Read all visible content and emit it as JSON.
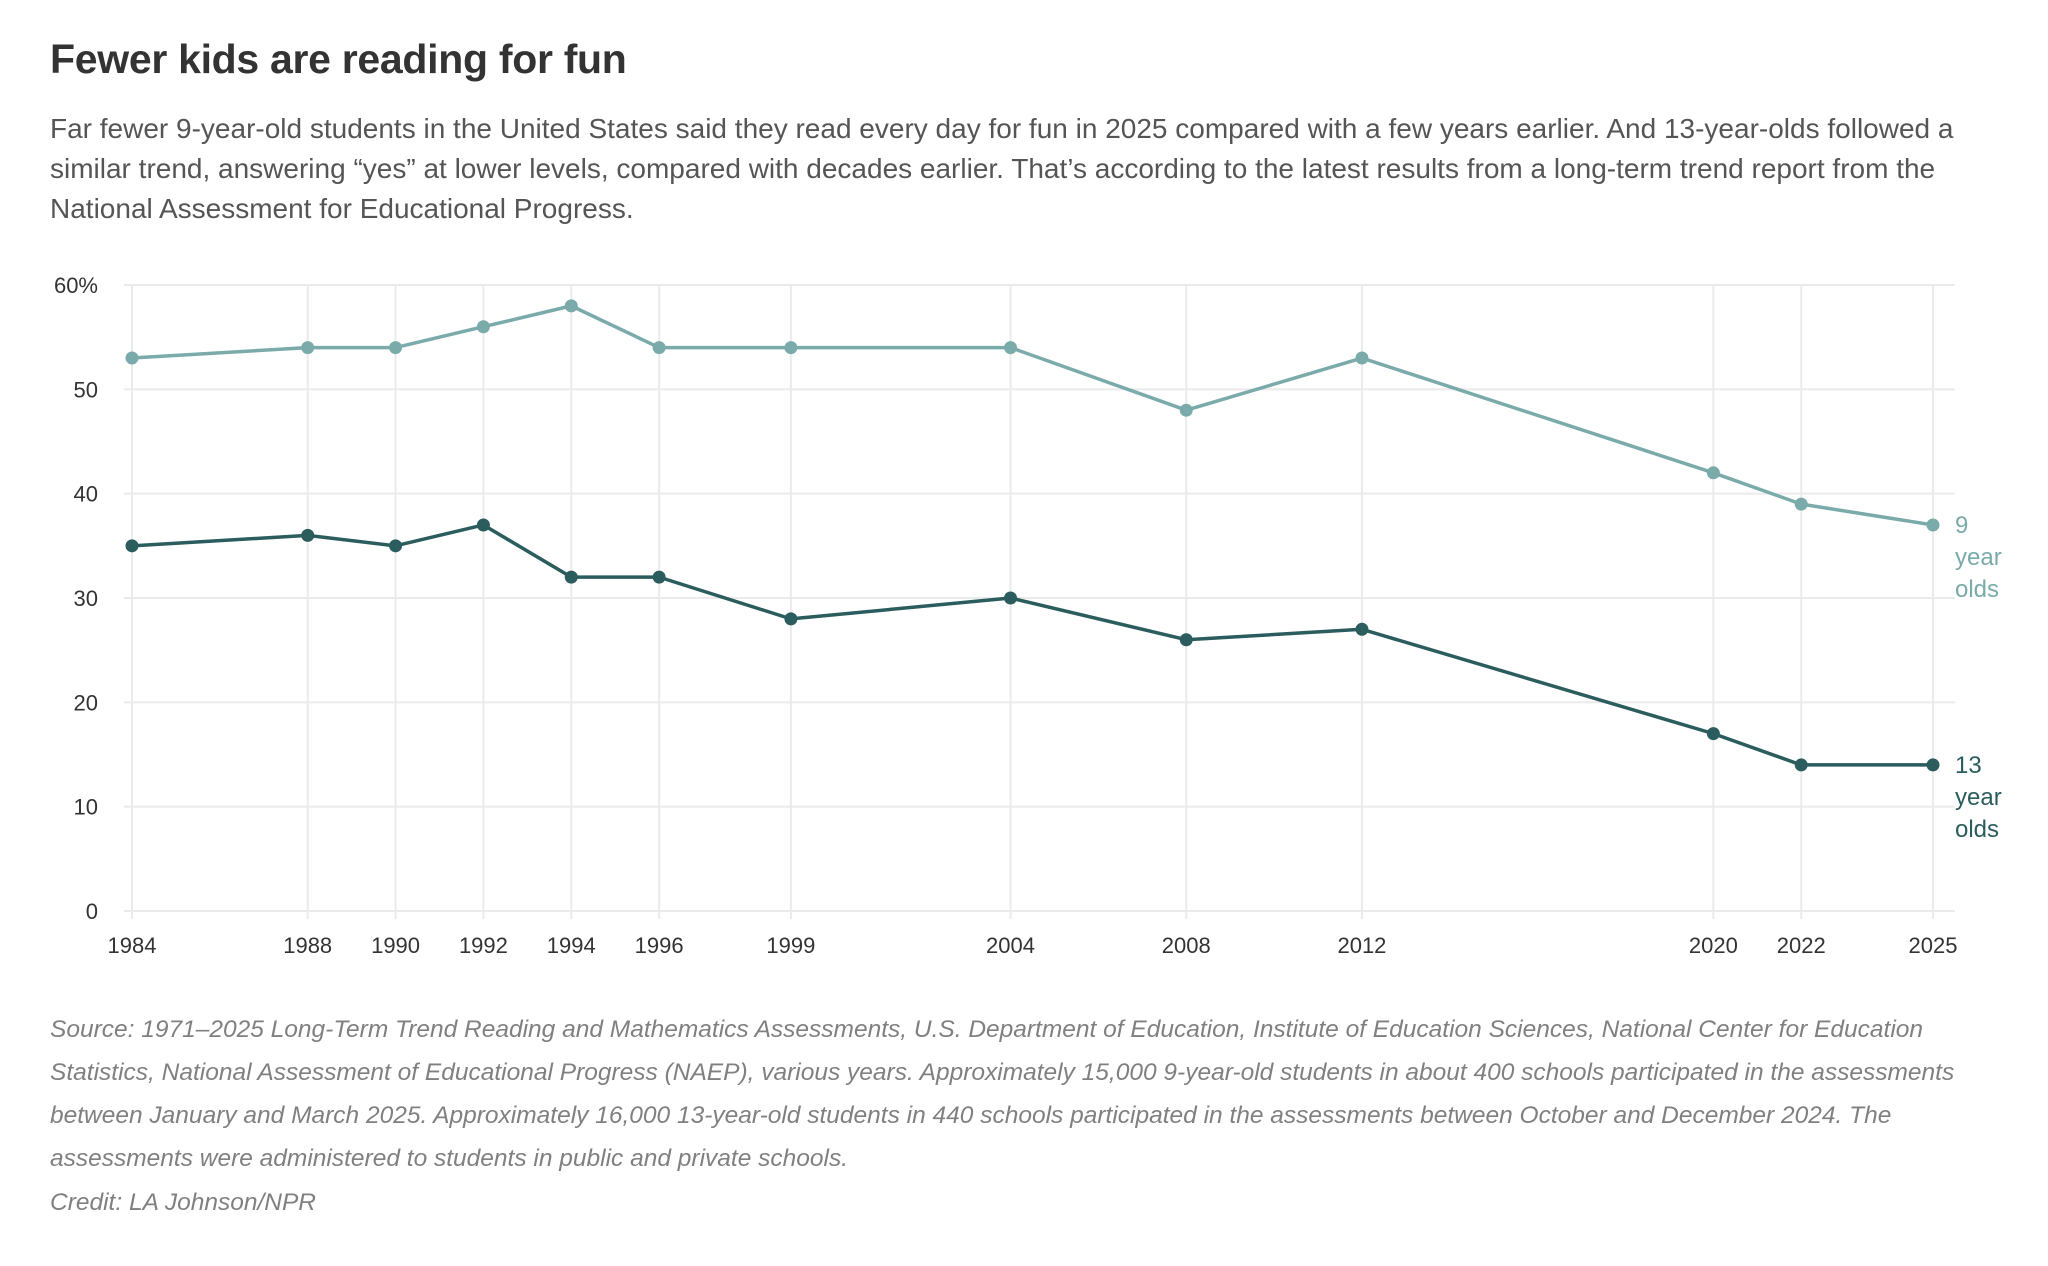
{
  "title": "Fewer kids are reading for fun",
  "subtitle": "Far fewer 9-year-old students in the United States said they read every day for fun in 2025 compared with a few years earlier. And 13-year-olds followed a similar trend, answering “yes” at lower levels, compared with decades earlier. That’s according to the latest results from a long-term trend report from the National Assessment for Educational Progress.",
  "source": "Source: 1971–2025 Long-Term Trend Reading and Mathematics Assessments, U.S. Department of Education, Institute of Education Sciences, National Center for Education Statistics, National Assessment of Educational Progress (NAEP), various years. Approximately 15,000 9-year-old students in about 400 schools participated in the assessments between January and March 2025. Approximately 16,000 13-year-old students in 440 schools participated in the assessments between October and December 2024. The assessments were administered to students in public and private schools.",
  "credit": "Credit: LA Johnson/NPR",
  "chart_data": {
    "type": "line",
    "x": [
      1984,
      1988,
      1990,
      1992,
      1994,
      1996,
      1999,
      2004,
      2008,
      2012,
      2020,
      2022,
      2025
    ],
    "x_tick_labels": [
      "1984",
      "1988",
      "1990",
      "1992",
      "1994",
      "1996",
      "1999",
      "2004",
      "2008",
      "2012",
      "2020",
      "2022",
      "2025"
    ],
    "y_ticks": [
      0,
      10,
      20,
      30,
      40,
      50,
      60
    ],
    "y_tick_labels": [
      "0",
      "10",
      "20",
      "30",
      "40",
      "50",
      "60%"
    ],
    "ylim": [
      0,
      60
    ],
    "xlim": [
      1984,
      2025
    ],
    "grid": true,
    "series": [
      {
        "name": "9 year olds",
        "label_lines": [
          "9",
          "year",
          "olds"
        ],
        "color": "#7aabaa",
        "values": [
          53,
          54,
          54,
          56,
          58,
          54,
          54,
          54,
          48,
          53,
          42,
          39,
          37
        ]
      },
      {
        "name": "13 year olds",
        "label_lines": [
          "13",
          "year",
          "olds"
        ],
        "color": "#2b5d5e",
        "values": [
          35,
          36,
          35,
          37,
          32,
          32,
          28,
          30,
          26,
          27,
          17,
          14,
          14
        ]
      }
    ],
    "grid_color": "#ebebeb"
  }
}
